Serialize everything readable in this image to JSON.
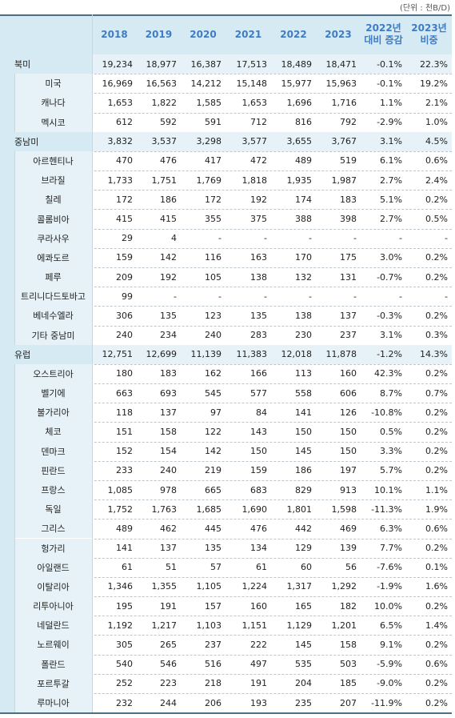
{
  "unit_note": "(단위 : 천B/D)",
  "table": {
    "header": [
      [
        "2018"
      ],
      [
        "2019"
      ],
      [
        "2020"
      ],
      [
        "2021"
      ],
      [
        "2022"
      ],
      [
        "2023"
      ],
      [
        "2022년",
        "대비 증감"
      ],
      [
        "2023년",
        "비중"
      ]
    ],
    "groups": [
      {
        "label": "북미",
        "cells": [
          "19,234",
          "18,977",
          "16,387",
          "17,513",
          "18,489",
          "18,471",
          "-0.1%",
          "22.3%"
        ],
        "rows": [
          {
            "label": "미국",
            "cells": [
              "16,969",
              "16,563",
              "14,212",
              "15,148",
              "15,977",
              "15,963",
              "-0.1%",
              "19.2%"
            ]
          },
          {
            "label": "캐나다",
            "cells": [
              "1,653",
              "1,822",
              "1,585",
              "1,653",
              "1,696",
              "1,716",
              "1.1%",
              "2.1%"
            ]
          },
          {
            "label": "멕시코",
            "cells": [
              "612",
              "592",
              "591",
              "712",
              "816",
              "792",
              "-2.9%",
              "1.0%"
            ]
          }
        ]
      },
      {
        "label": "중남미",
        "cells": [
          "3,832",
          "3,537",
          "3,298",
          "3,577",
          "3,655",
          "3,767",
          "3.1%",
          "4.5%"
        ],
        "rows": [
          {
            "label": "아르헨티나",
            "cells": [
              "470",
              "476",
              "417",
              "472",
              "489",
              "519",
              "6.1%",
              "0.6%"
            ]
          },
          {
            "label": "브라질",
            "cells": [
              "1,733",
              "1,751",
              "1,769",
              "1,818",
              "1,935",
              "1,987",
              "2.7%",
              "2.4%"
            ]
          },
          {
            "label": "칠레",
            "cells": [
              "172",
              "186",
              "172",
              "192",
              "174",
              "183",
              "5.1%",
              "0.2%"
            ]
          },
          {
            "label": "콜롬비아",
            "cells": [
              "415",
              "415",
              "355",
              "375",
              "388",
              "398",
              "2.7%",
              "0.5%"
            ]
          },
          {
            "label": "쿠라사우",
            "cells": [
              "29",
              "4",
              "-",
              "-",
              "-",
              "-",
              "-",
              "-"
            ]
          },
          {
            "label": "에콰도르",
            "cells": [
              "159",
              "142",
              "116",
              "163",
              "170",
              "175",
              "3.0%",
              "0.2%"
            ]
          },
          {
            "label": "페루",
            "cells": [
              "209",
              "192",
              "105",
              "138",
              "132",
              "131",
              "-0.7%",
              "0.2%"
            ]
          },
          {
            "label": "트리니다드토바고",
            "cells": [
              "99",
              "-",
              "-",
              "-",
              "-",
              "-",
              "-",
              "-"
            ]
          },
          {
            "label": "베네수엘라",
            "cells": [
              "306",
              "135",
              "123",
              "135",
              "138",
              "137",
              "-0.3%",
              "0.2%"
            ]
          },
          {
            "label": "기타 중남미",
            "cells": [
              "240",
              "234",
              "240",
              "283",
              "230",
              "237",
              "3.1%",
              "0.3%"
            ]
          }
        ]
      },
      {
        "label": "유럽",
        "cells": [
          "12,751",
          "12,699",
          "11,139",
          "11,383",
          "12,018",
          "11,878",
          "-1.2%",
          "14.3%"
        ],
        "rows": [
          {
            "label": "오스트리아",
            "cells": [
              "180",
              "183",
              "162",
              "166",
              "113",
              "160",
              "42.3%",
              "0.2%"
            ]
          },
          {
            "label": "벨기에",
            "cells": [
              "663",
              "693",
              "545",
              "577",
              "558",
              "606",
              "8.7%",
              "0.7%"
            ]
          },
          {
            "label": "불가리아",
            "cells": [
              "118",
              "137",
              "97",
              "84",
              "141",
              "126",
              "-10.8%",
              "0.2%"
            ]
          },
          {
            "label": "체코",
            "cells": [
              "151",
              "158",
              "122",
              "143",
              "150",
              "150",
              "0.5%",
              "0.2%"
            ]
          },
          {
            "label": "덴마크",
            "cells": [
              "152",
              "154",
              "142",
              "150",
              "145",
              "150",
              "3.3%",
              "0.2%"
            ]
          },
          {
            "label": "핀란드",
            "cells": [
              "233",
              "240",
              "219",
              "159",
              "186",
              "197",
              "5.7%",
              "0.2%"
            ]
          },
          {
            "label": "프랑스",
            "cells": [
              "1,085",
              "978",
              "665",
              "683",
              "829",
              "913",
              "10.1%",
              "1.1%"
            ]
          },
          {
            "label": "독일",
            "cells": [
              "1,752",
              "1,763",
              "1,685",
              "1,690",
              "1,801",
              "1,598",
              "-11.3%",
              "1.9%"
            ]
          },
          {
            "label": "그리스",
            "cells": [
              "489",
              "462",
              "445",
              "476",
              "442",
              "469",
              "6.3%",
              "0.6%"
            ]
          },
          {
            "label": "헝가리",
            "cells": [
              "141",
              "137",
              "135",
              "134",
              "129",
              "139",
              "7.7%",
              "0.2%"
            ]
          },
          {
            "label": "아일랜드",
            "cells": [
              "61",
              "51",
              "57",
              "61",
              "60",
              "56",
              "-7.6%",
              "0.1%"
            ]
          },
          {
            "label": "이탈리아",
            "cells": [
              "1,346",
              "1,355",
              "1,105",
              "1,224",
              "1,317",
              "1,292",
              "-1.9%",
              "1.6%"
            ]
          },
          {
            "label": "리투아니아",
            "cells": [
              "195",
              "191",
              "157",
              "160",
              "165",
              "182",
              "10.0%",
              "0.2%"
            ]
          },
          {
            "label": "네덜란드",
            "cells": [
              "1,192",
              "1,217",
              "1,103",
              "1,151",
              "1,129",
              "1,201",
              "6.5%",
              "1.4%"
            ]
          },
          {
            "label": "노르웨이",
            "cells": [
              "305",
              "265",
              "237",
              "222",
              "145",
              "158",
              "9.1%",
              "0.2%"
            ]
          },
          {
            "label": "폴란드",
            "cells": [
              "540",
              "546",
              "516",
              "497",
              "535",
              "503",
              "-5.9%",
              "0.6%"
            ]
          },
          {
            "label": "포르투갈",
            "cells": [
              "252",
              "223",
              "218",
              "191",
              "204",
              "185",
              "-9.0%",
              "0.2%"
            ]
          },
          {
            "label": "루마니아",
            "cells": [
              "232",
              "244",
              "206",
              "193",
              "235",
              "207",
              "-11.9%",
              "0.2%"
            ]
          }
        ]
      }
    ]
  }
}
